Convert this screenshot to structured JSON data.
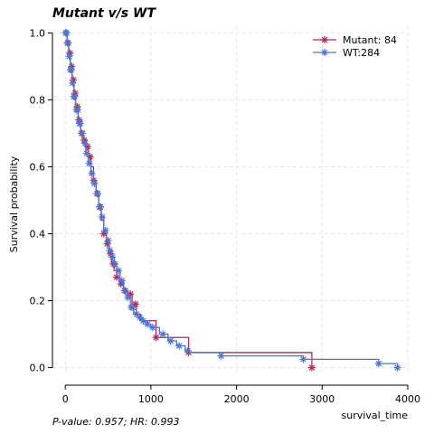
{
  "chart_data": {
    "type": "line",
    "subtype": "kaplan-meier",
    "title": "Mutant v/s WT",
    "xlabel": "survival_time",
    "ylabel": "Survival probability",
    "xlim": [
      -150,
      4000
    ],
    "ylim": [
      -0.02,
      1.02
    ],
    "xticks": [
      0,
      1000,
      2000,
      3000,
      4000
    ],
    "yticks": [
      0.0,
      0.2,
      0.4,
      0.6,
      0.8,
      1.0
    ],
    "xtick_labels": [
      "0",
      "1000",
      "2000",
      "3000",
      "4000"
    ],
    "ytick_labels": [
      "0.0",
      "0.2",
      "0.4",
      "0.6",
      "0.8",
      "1.0"
    ],
    "grid": true,
    "legend_position": "top-right",
    "footer": "P-value: 0.957; HR: 0.993",
    "series": [
      {
        "name": "Mutant: 84",
        "color": "#b5294e",
        "x": [
          0,
          20,
          40,
          60,
          80,
          100,
          120,
          150,
          180,
          210,
          240,
          270,
          300,
          330,
          360,
          390,
          420,
          450,
          480,
          510,
          540,
          570,
          600,
          640,
          680,
          720,
          780,
          830,
          880,
          960,
          1060,
          1440,
          2880
        ],
        "y": [
          1.0,
          0.97,
          0.94,
          0.9,
          0.86,
          0.82,
          0.78,
          0.74,
          0.7,
          0.68,
          0.66,
          0.63,
          0.6,
          0.56,
          0.52,
          0.48,
          0.44,
          0.4,
          0.37,
          0.34,
          0.31,
          0.29,
          0.27,
          0.25,
          0.23,
          0.22,
          0.19,
          0.16,
          0.14,
          0.14,
          0.09,
          0.045,
          0.0
        ],
        "censored_x": [
          10,
          30,
          55,
          75,
          95,
          115,
          140,
          160,
          190,
          220,
          260,
          290,
          330,
          370,
          410,
          450,
          490,
          530,
          560,
          600,
          650,
          700,
          760,
          820,
          1060,
          1440,
          2880
        ]
      },
      {
        "name": "WT:284",
        "color": "#4a73d6",
        "x": [
          0,
          20,
          40,
          60,
          80,
          100,
          120,
          150,
          180,
          210,
          240,
          270,
          300,
          330,
          360,
          390,
          420,
          450,
          480,
          510,
          540,
          570,
          600,
          640,
          680,
          720,
          760,
          800,
          850,
          900,
          950,
          1000,
          1100,
          1200,
          1300,
          1400,
          1450,
          1820,
          2780,
          3660,
          3880
        ],
        "y": [
          1.0,
          0.97,
          0.93,
          0.89,
          0.85,
          0.81,
          0.77,
          0.73,
          0.7,
          0.67,
          0.64,
          0.61,
          0.58,
          0.55,
          0.52,
          0.48,
          0.45,
          0.41,
          0.38,
          0.35,
          0.33,
          0.31,
          0.29,
          0.26,
          0.23,
          0.21,
          0.18,
          0.16,
          0.15,
          0.14,
          0.13,
          0.12,
          0.1,
          0.08,
          0.065,
          0.05,
          0.045,
          0.035,
          0.025,
          0.012,
          0.0
        ],
        "censored_x": [
          5,
          15,
          25,
          35,
          45,
          60,
          70,
          85,
          100,
          110,
          130,
          145,
          165,
          175,
          200,
          230,
          250,
          280,
          310,
          340,
          380,
          400,
          430,
          470,
          500,
          520,
          550,
          580,
          620,
          660,
          690,
          730,
          770,
          790,
          830,
          870,
          910,
          960,
          1020,
          1140,
          1230,
          1330,
          1430,
          1820,
          2780,
          3660,
          3880
        ]
      }
    ]
  }
}
